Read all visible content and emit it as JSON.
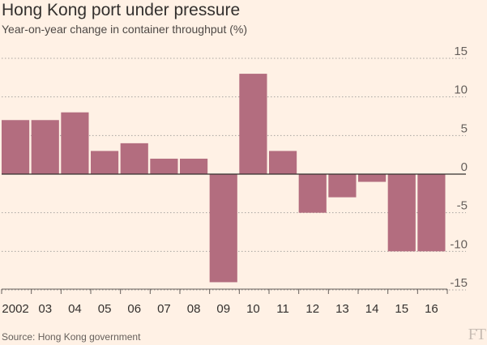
{
  "header": {
    "title": "Hong Kong port under pressure",
    "subtitle": "Year-on-year change in container throughput (%)"
  },
  "footer": {
    "source": "Source: Hong Kong government",
    "logo": "FT"
  },
  "colors": {
    "background": "#fff1e5",
    "bar": "#b36d7f",
    "grid": "#a8a4a0",
    "zero_line": "#33302e",
    "text": "#33302e"
  },
  "chart_data": {
    "type": "bar",
    "title": "Hong Kong port under pressure",
    "subtitle": "Year-on-year change in container throughput (%)",
    "categories": [
      "2002",
      "03",
      "04",
      "05",
      "06",
      "07",
      "08",
      "09",
      "10",
      "11",
      "12",
      "13",
      "14",
      "15",
      "16"
    ],
    "values": [
      7,
      7,
      8,
      3,
      4,
      2,
      2,
      -14,
      13,
      3,
      -5,
      -3,
      -1,
      -10,
      -10
    ],
    "xlabel": "",
    "ylabel": "",
    "ylim": [
      -15,
      15
    ],
    "yticks": [
      15,
      10,
      5,
      0,
      -5,
      -10,
      -15
    ],
    "ytick_labels": [
      "15",
      "10",
      "5",
      "0",
      "-5",
      "-10",
      "-15"
    ],
    "y_axis_side": "right",
    "grid": true,
    "legend": "none"
  }
}
